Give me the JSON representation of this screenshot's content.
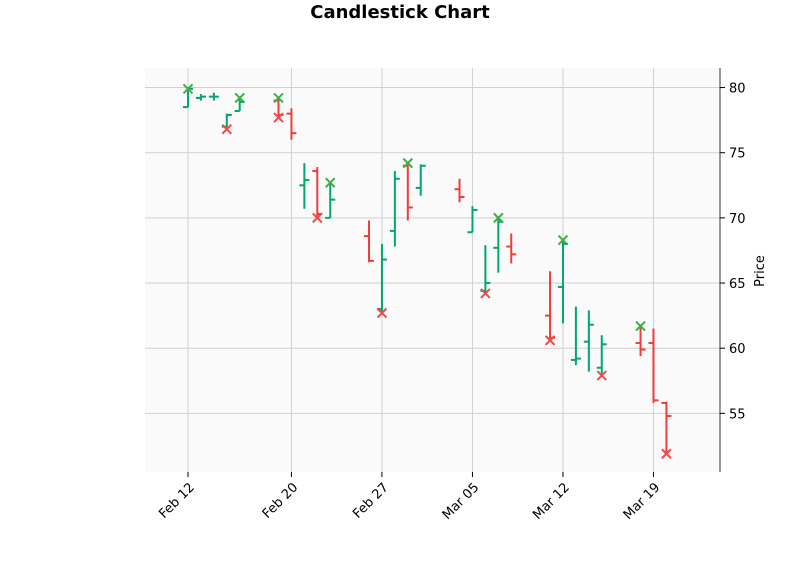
{
  "chart_data": {
    "type": "ohlc",
    "title": "Candlestick Chart",
    "xlabel": "",
    "ylabel": "Price",
    "ylim": [
      50.5,
      81.5
    ],
    "yticks": [
      55,
      60,
      65,
      70,
      75,
      80
    ],
    "xticks": [
      {
        "date": "2024-02-12",
        "label": "Feb 12"
      },
      {
        "date": "2024-02-20",
        "label": "Feb 20"
      },
      {
        "date": "2024-02-27",
        "label": "Feb 27"
      },
      {
        "date": "2024-03-05",
        "label": "Mar 05"
      },
      {
        "date": "2024-03-12",
        "label": "Mar 12"
      },
      {
        "date": "2024-03-19",
        "label": "Mar 19"
      }
    ],
    "grid": true,
    "up_color": "#00a86b",
    "down_color": "#f03c3c",
    "marker_up_color": "#3cb043",
    "marker_down_color": "#f04a4a",
    "candles": [
      {
        "date": "2024-02-12",
        "open": 78.5,
        "high": 80.0,
        "low": 78.5,
        "close": 79.9
      },
      {
        "date": "2024-02-13",
        "open": 79.2,
        "high": 79.5,
        "low": 79.0,
        "close": 79.3
      },
      {
        "date": "2024-02-14",
        "open": 79.3,
        "high": 79.6,
        "low": 79.0,
        "close": 79.3
      },
      {
        "date": "2024-02-15",
        "open": 77.0,
        "high": 78.0,
        "low": 76.9,
        "close": 77.9
      },
      {
        "date": "2024-02-16",
        "open": 78.2,
        "high": 79.2,
        "low": 78.2,
        "close": 78.9
      },
      {
        "date": "2024-02-19",
        "open": 79.0,
        "high": 79.3,
        "low": 77.6,
        "close": 77.9
      },
      {
        "date": "2024-02-20",
        "open": 78.0,
        "high": 78.4,
        "low": 76.0,
        "close": 76.5
      },
      {
        "date": "2024-02-21",
        "open": 72.5,
        "high": 74.2,
        "low": 70.7,
        "close": 72.9
      },
      {
        "date": "2024-02-22",
        "open": 73.6,
        "high": 73.9,
        "low": 70.0,
        "close": 70.3
      },
      {
        "date": "2024-02-23",
        "open": 70.0,
        "high": 72.7,
        "low": 70.0,
        "close": 71.4
      },
      {
        "date": "2024-02-26",
        "open": 68.6,
        "high": 69.8,
        "low": 66.6,
        "close": 66.7
      },
      {
        "date": "2024-02-27",
        "open": 63.0,
        "high": 68.0,
        "low": 62.7,
        "close": 66.8
      },
      {
        "date": "2024-02-28",
        "open": 69.0,
        "high": 73.6,
        "low": 67.8,
        "close": 73.0
      },
      {
        "date": "2024-02-29",
        "open": 74.0,
        "high": 74.3,
        "low": 69.8,
        "close": 70.8
      },
      {
        "date": "2024-03-01",
        "open": 72.3,
        "high": 74.1,
        "low": 71.7,
        "close": 74.0
      },
      {
        "date": "2024-03-04",
        "open": 72.2,
        "high": 73.0,
        "low": 71.2,
        "close": 71.6
      },
      {
        "date": "2024-03-05",
        "open": 68.9,
        "high": 70.9,
        "low": 68.9,
        "close": 70.6
      },
      {
        "date": "2024-03-06",
        "open": 64.4,
        "high": 67.9,
        "low": 64.2,
        "close": 65.0
      },
      {
        "date": "2024-03-07",
        "open": 67.7,
        "high": 70.0,
        "low": 65.8,
        "close": 69.7
      },
      {
        "date": "2024-03-08",
        "open": 67.8,
        "high": 68.8,
        "low": 66.5,
        "close": 67.2
      },
      {
        "date": "2024-03-11",
        "open": 62.5,
        "high": 65.9,
        "low": 60.5,
        "close": 60.8
      },
      {
        "date": "2024-03-12",
        "open": 64.7,
        "high": 68.3,
        "low": 61.9,
        "close": 68.0
      },
      {
        "date": "2024-03-13",
        "open": 59.1,
        "high": 63.2,
        "low": 58.7,
        "close": 59.2
      },
      {
        "date": "2024-03-14",
        "open": 60.5,
        "high": 62.9,
        "low": 58.2,
        "close": 61.8
      },
      {
        "date": "2024-03-15",
        "open": 58.5,
        "high": 61.0,
        "low": 57.9,
        "close": 60.3
      },
      {
        "date": "2024-03-18",
        "open": 60.4,
        "high": 61.7,
        "low": 59.4,
        "close": 59.9
      },
      {
        "date": "2024-03-19",
        "open": 60.4,
        "high": 61.5,
        "low": 55.8,
        "close": 56.0
      },
      {
        "date": "2024-03-20",
        "open": 55.8,
        "high": 55.9,
        "low": 51.9,
        "close": 54.8
      }
    ],
    "markers": [
      {
        "date": "2024-02-12",
        "value": 79.9,
        "kind": "high"
      },
      {
        "date": "2024-02-16",
        "value": 79.2,
        "kind": "high"
      },
      {
        "date": "2024-02-19",
        "value": 79.2,
        "kind": "high"
      },
      {
        "date": "2024-02-23",
        "value": 72.7,
        "kind": "high"
      },
      {
        "date": "2024-02-29",
        "value": 74.2,
        "kind": "high"
      },
      {
        "date": "2024-03-07",
        "value": 70.0,
        "kind": "high"
      },
      {
        "date": "2024-03-12",
        "value": 68.3,
        "kind": "high"
      },
      {
        "date": "2024-03-18",
        "value": 61.7,
        "kind": "high"
      },
      {
        "date": "2024-02-15",
        "value": 76.8,
        "kind": "low"
      },
      {
        "date": "2024-02-19",
        "value": 77.7,
        "kind": "low"
      },
      {
        "date": "2024-02-22",
        "value": 70.0,
        "kind": "low"
      },
      {
        "date": "2024-02-27",
        "value": 62.7,
        "kind": "low"
      },
      {
        "date": "2024-03-06",
        "value": 64.2,
        "kind": "low"
      },
      {
        "date": "2024-03-11",
        "value": 60.6,
        "kind": "low"
      },
      {
        "date": "2024-03-15",
        "value": 57.9,
        "kind": "low"
      },
      {
        "date": "2024-03-20",
        "value": 51.9,
        "kind": "low"
      }
    ]
  }
}
